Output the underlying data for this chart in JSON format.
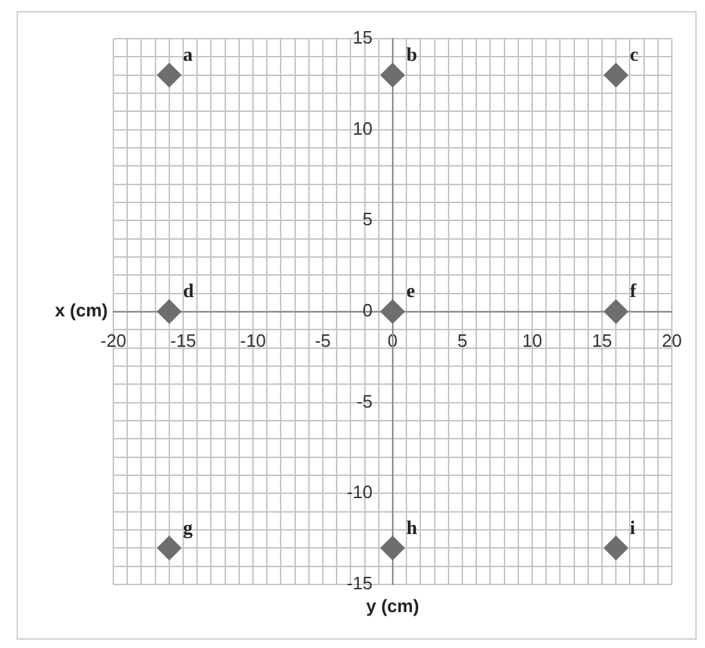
{
  "chart_data": {
    "type": "scatter",
    "xlabel": "y (cm)",
    "ylabel": "x (cm)",
    "x": [
      -16,
      0,
      16,
      -16,
      0,
      16,
      -16,
      0,
      16
    ],
    "series": [
      {
        "color": "#6e6e6e",
        "values": [
          13,
          13,
          13,
          0,
          0,
          0,
          -13,
          -13,
          -13
        ]
      }
    ],
    "marker": "diamond",
    "grid": true,
    "legend": false,
    "xlim": [
      -20,
      20
    ],
    "ylim": [
      -15,
      15
    ],
    "xticks": [
      -20,
      {
        "value": -19,
        "label": null
      },
      {
        "value": -18,
        "label": null
      },
      {
        "value": -17,
        "label": null
      },
      {
        "value": -16,
        "label": null
      },
      -15,
      {
        "value": -14,
        "label": null
      },
      {
        "value": -13,
        "label": null
      },
      {
        "value": -12,
        "label": null
      },
      {
        "value": -11,
        "label": null
      },
      -10,
      {
        "value": -9,
        "label": null
      },
      {
        "value": -8,
        "label": null
      },
      {
        "value": -7,
        "label": null
      },
      {
        "value": -6,
        "label": null
      },
      -5,
      {
        "value": -4,
        "label": null
      },
      {
        "value": -3,
        "label": null
      },
      {
        "value": -2,
        "label": null
      },
      {
        "value": -1,
        "label": null
      },
      0,
      {
        "value": 1,
        "label": null
      },
      {
        "value": 2,
        "label": null
      },
      {
        "value": 3,
        "label": null
      },
      {
        "value": 4,
        "label": null
      },
      5,
      {
        "value": 6,
        "label": null
      },
      {
        "value": 7,
        "label": null
      },
      {
        "value": 8,
        "label": null
      },
      {
        "value": 9,
        "label": null
      },
      10,
      {
        "value": 11,
        "label": null
      },
      {
        "value": 12,
        "label": null
      },
      {
        "value": 13,
        "label": null
      },
      {
        "value": 14,
        "label": null
      },
      15,
      {
        "value": 16,
        "label": null
      },
      {
        "value": 17,
        "label": null
      },
      {
        "value": 18,
        "label": null
      },
      {
        "value": 19,
        "label": null
      },
      20
    ],
    "yticks": [
      -15,
      {
        "value": -14,
        "label": null
      },
      {
        "value": -13,
        "label": null
      },
      {
        "value": -12,
        "label": null
      },
      {
        "value": -11,
        "label": null
      },
      -10,
      {
        "value": -9,
        "label": null
      },
      {
        "value": -8,
        "label": null
      },
      {
        "value": -7,
        "label": null
      },
      {
        "value": -6,
        "label": null
      },
      -5,
      {
        "value": -4,
        "label": null
      },
      {
        "value": -3,
        "label": null
      },
      {
        "value": -2,
        "label": null
      },
      {
        "value": -1,
        "label": null
      },
      0,
      {
        "value": 1,
        "label": null
      },
      {
        "value": 2,
        "label": null
      },
      {
        "value": 3,
        "label": null
      },
      {
        "value": 4,
        "label": null
      },
      5,
      {
        "value": 6,
        "label": null
      },
      {
        "value": 7,
        "label": null
      },
      {
        "value": 8,
        "label": null
      },
      {
        "value": 9,
        "label": null
      },
      10,
      {
        "value": 11,
        "label": null
      },
      {
        "value": 12,
        "label": null
      },
      {
        "value": 13,
        "label": null
      },
      {
        "value": 14,
        "label": null
      },
      15
    ],
    "annotations": [
      {
        "text": "a",
        "x": -16,
        "y": 13
      },
      {
        "text": "b",
        "x": 0,
        "y": 13
      },
      {
        "text": "c",
        "x": 16,
        "y": 13
      },
      {
        "text": "d",
        "x": -16,
        "y": 0
      },
      {
        "text": "e",
        "x": 0,
        "y": 0
      },
      {
        "text": "f",
        "x": 16,
        "y": 0
      },
      {
        "text": "g",
        "x": -16,
        "y": -13
      },
      {
        "text": "h",
        "x": 0,
        "y": -13
      },
      {
        "text": "i",
        "x": 16,
        "y": -13
      }
    ]
  }
}
